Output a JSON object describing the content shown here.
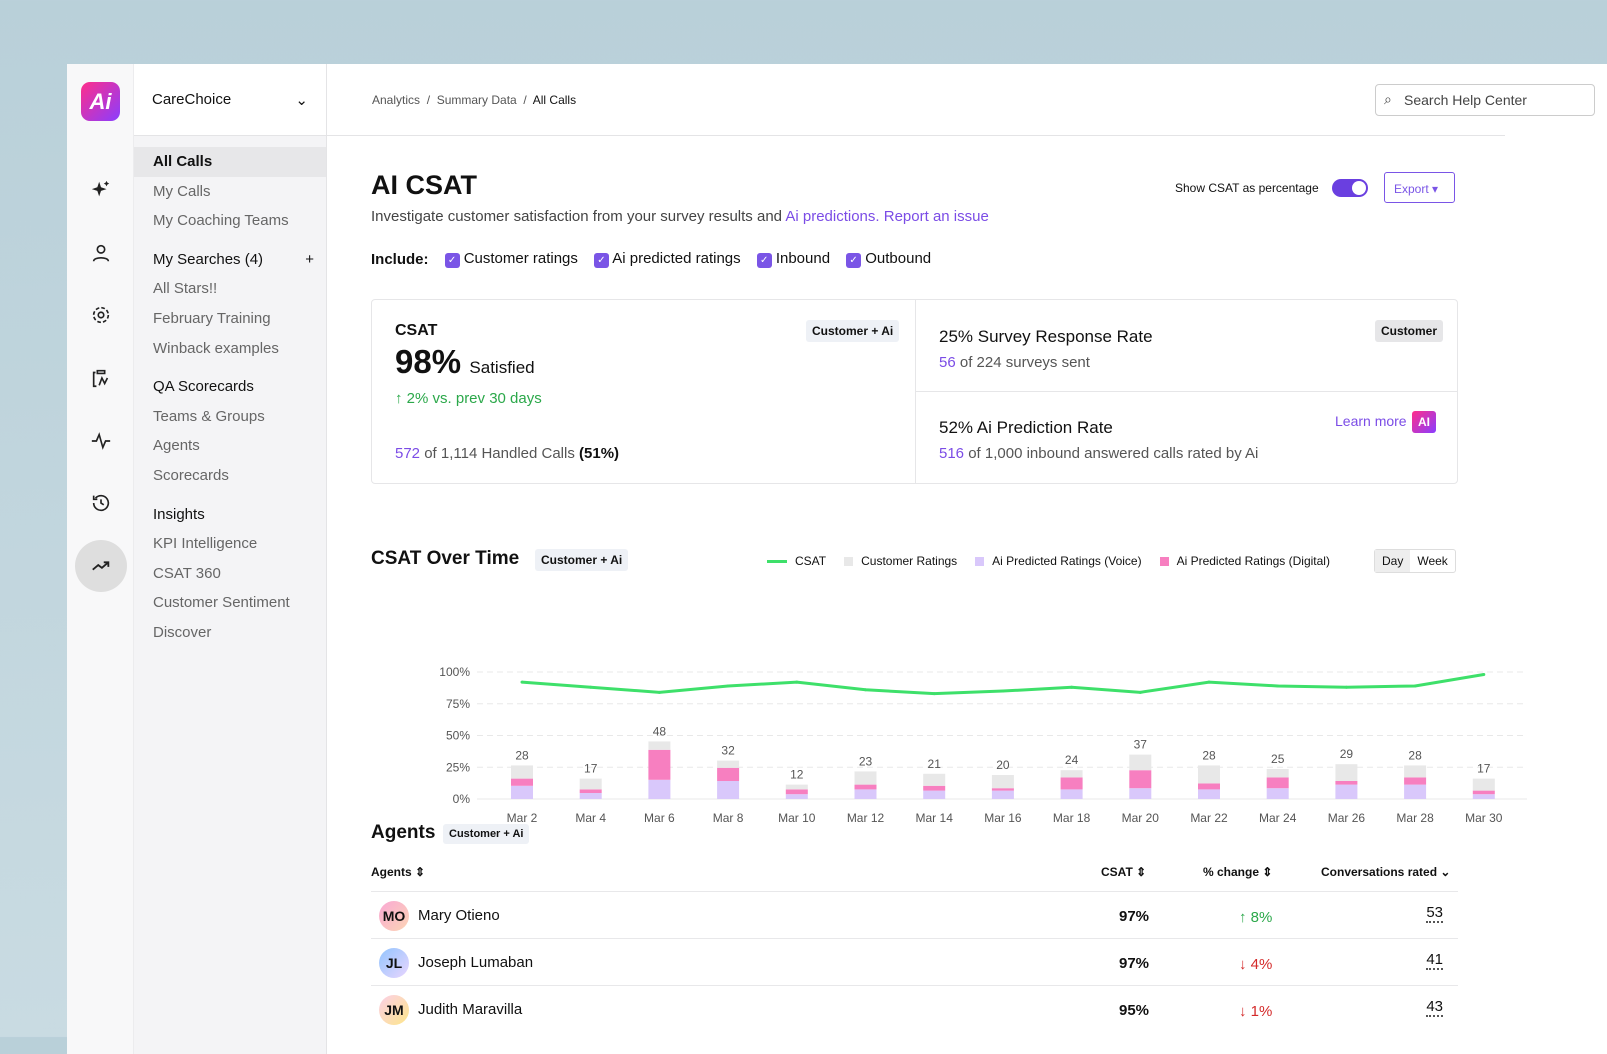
{
  "org": {
    "name": "CareChoice"
  },
  "logo_text": "Ai",
  "rail_icons": [
    "sparkles-icon",
    "user-icon",
    "gear-icon",
    "clipboard-icon",
    "pulse-icon",
    "history-icon",
    "trending-up-icon"
  ],
  "nav": [
    {
      "label": "All Calls",
      "type": "sel"
    },
    {
      "label": "My Calls"
    },
    {
      "label": "My Coaching Teams"
    },
    {
      "label": "My Searches (4)",
      "type": "h",
      "add": "+"
    },
    {
      "label": "All Stars!!"
    },
    {
      "label": "February Training"
    },
    {
      "label": "Winback examples"
    },
    {
      "label": "QA Scorecards",
      "type": "h"
    },
    {
      "label": "Teams & Groups"
    },
    {
      "label": "Agents"
    },
    {
      "label": "Scorecards"
    },
    {
      "label": "Insights",
      "type": "h"
    },
    {
      "label": "KPI Intelligence"
    },
    {
      "label": "CSAT 360"
    },
    {
      "label": "Customer Sentiment"
    },
    {
      "label": "Discover"
    }
  ],
  "breadcrumb": [
    "Analytics",
    "Summary Data",
    "All Calls"
  ],
  "search": {
    "placeholder": "Search Help Center"
  },
  "page": {
    "title": "AI CSAT",
    "subtitle": "Investigate customer satisfaction from your survey results and ",
    "link1": "Ai predictions.",
    "link2": "Report an issue",
    "toggle_label": "Show CSAT as percentage",
    "toggle_on": true,
    "export": "Export"
  },
  "include": {
    "label": "Include:",
    "options": [
      "Customer ratings",
      "Ai predicted ratings",
      "Inbound",
      "Outbound"
    ]
  },
  "csat_card": {
    "title": "CSAT",
    "tag": "Customer + Ai",
    "value": "98%",
    "value_label": "Satisfied",
    "change": "↑ 2% vs. prev 30 days",
    "count": "572",
    "count_text": " of 1,114 Handled Calls ",
    "pct": "(51%)"
  },
  "survey_card": {
    "title": "25% Survey Response Rate",
    "tag": "Customer",
    "count": "56",
    "text": " of 224 surveys sent"
  },
  "ai_card": {
    "title": "52% Ai Prediction Rate",
    "learn": "Learn more",
    "badge": "AI",
    "count": "516",
    "text": " of 1,000 inbound answered calls rated by Ai"
  },
  "chart_section": {
    "title": "CSAT Over Time",
    "tag": "Customer + Ai",
    "day": "Day",
    "week": "Week"
  },
  "chart_data": {
    "type": "bar",
    "categories": [
      "Mar 2",
      "Mar 4",
      "Mar 6",
      "Mar 8",
      "Mar 10",
      "Mar 12",
      "Mar 14",
      "Mar 16",
      "Mar 18",
      "Mar 20",
      "Mar 22",
      "Mar 24",
      "Mar 26",
      "Mar 28",
      "Mar 30"
    ],
    "yticks": [
      "0%",
      "25%",
      "50%",
      "75%",
      "100%"
    ],
    "ylim": [
      0,
      100
    ],
    "legend_placement": "top-right",
    "grid": true,
    "totals": [
      28,
      17,
      48,
      32,
      12,
      23,
      21,
      20,
      24,
      37,
      28,
      25,
      29,
      28,
      17
    ],
    "series": [
      {
        "name": "CSAT",
        "type": "line",
        "color": "#3ee06a",
        "values": [
          92,
          88,
          84,
          89,
          92,
          86,
          83,
          85,
          88,
          84,
          92,
          89,
          88,
          89,
          98
        ]
      },
      {
        "name": "Customer Ratings",
        "color": "#e8e8e8",
        "values": [
          11,
          9,
          7,
          6,
          4,
          11,
          10,
          11,
          6,
          13,
          15,
          7,
          14,
          10,
          10
        ]
      },
      {
        "name": "Ai Predicted Ratings (Voice)",
        "color": "#d9c8fb",
        "values": [
          11,
          5,
          16,
          15,
          4,
          8,
          7,
          7,
          8,
          9,
          8,
          9,
          12,
          12,
          4
        ]
      },
      {
        "name": "Ai Predicted Ratings (Digital)",
        "color": "#f77fc0",
        "values": [
          6,
          3,
          25,
          11,
          4,
          4,
          4,
          2,
          10,
          15,
          5,
          9,
          3,
          6,
          3
        ]
      }
    ]
  },
  "agents": {
    "title": "Agents",
    "tag": "Customer + Ai",
    "headers": {
      "agent": "Agents",
      "csat": "CSAT",
      "change": "% change",
      "rated": "Conversations rated"
    },
    "rows": [
      {
        "initials": "MO",
        "name": "Mary Otieno",
        "csat": "97%",
        "change": "↑ 8%",
        "dir": "up",
        "rated": "53"
      },
      {
        "initials": "JL",
        "name": "Joseph Lumaban",
        "csat": "97%",
        "change": "↓ 4%",
        "dir": "down",
        "rated": "41"
      },
      {
        "initials": "JM",
        "name": "Judith Maravilla",
        "csat": "95%",
        "change": "↓ 1%",
        "dir": "down",
        "rated": "43"
      }
    ]
  }
}
